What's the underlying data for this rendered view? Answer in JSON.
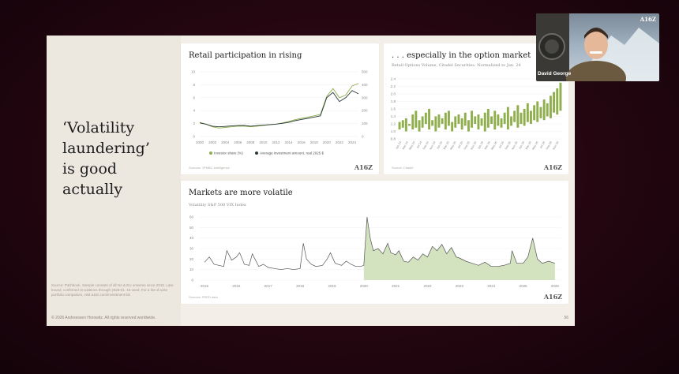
{
  "slide": {
    "headline": "‘Volatility\nlaundering’\nis good\nactually",
    "source_note": "Source: Pitchbook. Sample consists of all NA & EU universe since 2015. Late-bound, confirmed circulations through 2026-01. 15 used. For a list of a16z portfolio companies, visit a16z.com/investment-list",
    "footer_left": "© 2026 Andreessen Horowitz. All rights reserved worldwide.",
    "page_number": "56"
  },
  "chart_retail": {
    "title": "Retail participation in rising",
    "source": "Sources: JPMBC Intelligence",
    "logo": "A16Z",
    "legend": [
      "Investor share (%)",
      "Average investment amount, real 2025 $"
    ],
    "chart_data": {
      "type": "line",
      "x": [
        2000,
        2001,
        2002,
        2003,
        2004,
        2005,
        2006,
        2007,
        2008,
        2009,
        2010,
        2011,
        2012,
        2013,
        2014,
        2015,
        2016,
        2017,
        2018,
        2019,
        2020,
        2021,
        2022,
        2023,
        2024,
        2025
      ],
      "yticks_left": [
        "0",
        "2",
        "4",
        "6",
        "8",
        "10"
      ],
      "yticks_right": [
        "0",
        "100",
        "200",
        "300",
        "400",
        "500"
      ],
      "xticks": [
        "2000",
        "2002",
        "2004",
        "2006",
        "2008",
        "2010",
        "2012",
        "2014",
        "2016",
        "2018",
        "2020",
        "2022",
        "2024"
      ],
      "ylim": [
        0,
        10
      ],
      "y2lim": [
        0,
        500
      ],
      "series": [
        {
          "name": "Investor share (%)",
          "axis": "left",
          "color": "#8fae4c",
          "values": [
            2.2,
            1.9,
            1.5,
            1.3,
            1.4,
            1.5,
            1.6,
            1.6,
            1.5,
            1.6,
            1.7,
            1.8,
            1.9,
            2.1,
            2.3,
            2.6,
            2.8,
            3.0,
            3.2,
            3.4,
            6.2,
            7.4,
            6.0,
            6.4,
            7.8,
            8.2
          ]
        },
        {
          "name": "Average investment amount, real 2025 $",
          "axis": "right",
          "color": "#2b3a3a",
          "values": [
            105,
            95,
            80,
            75,
            78,
            82,
            85,
            86,
            80,
            84,
            88,
            92,
            96,
            102,
            110,
            122,
            132,
            140,
            150,
            160,
            300,
            340,
            270,
            300,
            355,
            330
          ]
        }
      ]
    }
  },
  "chart_options": {
    "title": ". . . especially in the option market",
    "subtitle": "Retail Options Volume, Citadel Securities. Normalized to Jan. 24",
    "source": "Source: Citadel",
    "logo": "A16Z",
    "chart_data": {
      "type": "bar",
      "yticks": [
        "0.8",
        "1.0",
        "1.2",
        "1.4",
        "1.6",
        "1.8",
        "2.0",
        "2.2",
        "2.4"
      ],
      "ylim": [
        0.8,
        2.4
      ],
      "xticks": [
        "Jan 24",
        "Mar 24",
        "May 24",
        "Jul 24",
        "Sep 24",
        "Nov 24",
        "Jan 25",
        "Mar 25",
        "May 25",
        "Jul 25",
        "Sep 25",
        "Nov 25",
        "Jan 26",
        "Mar 26",
        "May 26",
        "Jul 26",
        "Sep 26",
        "Nov 26",
        "Jan 26",
        "Mar 26",
        "May 26",
        "Jul 26",
        "Sep 26",
        "Nov 26"
      ],
      "color": "#8fae4c",
      "values": [
        [
          1.05,
          1.25
        ],
        [
          1.1,
          1.3
        ],
        [
          1.0,
          1.35
        ],
        [
          1.15,
          1.2
        ],
        [
          1.05,
          1.45
        ],
        [
          1.1,
          1.55
        ],
        [
          1.0,
          1.3
        ],
        [
          1.1,
          1.4
        ],
        [
          1.2,
          1.5
        ],
        [
          1.05,
          1.6
        ],
        [
          1.15,
          1.3
        ],
        [
          1.0,
          1.4
        ],
        [
          1.1,
          1.45
        ],
        [
          1.2,
          1.35
        ],
        [
          1.05,
          1.5
        ],
        [
          1.15,
          1.55
        ],
        [
          1.0,
          1.25
        ],
        [
          1.1,
          1.4
        ],
        [
          1.2,
          1.45
        ],
        [
          1.05,
          1.35
        ],
        [
          1.15,
          1.5
        ],
        [
          1.0,
          1.3
        ],
        [
          1.1,
          1.55
        ],
        [
          1.2,
          1.4
        ],
        [
          1.05,
          1.45
        ],
        [
          1.15,
          1.35
        ],
        [
          1.0,
          1.5
        ],
        [
          1.1,
          1.6
        ],
        [
          1.2,
          1.4
        ],
        [
          1.05,
          1.55
        ],
        [
          1.15,
          1.45
        ],
        [
          1.1,
          1.35
        ],
        [
          1.2,
          1.5
        ],
        [
          1.05,
          1.65
        ],
        [
          1.15,
          1.4
        ],
        [
          1.25,
          1.55
        ],
        [
          1.1,
          1.7
        ],
        [
          1.2,
          1.5
        ],
        [
          1.15,
          1.6
        ],
        [
          1.25,
          1.75
        ],
        [
          1.2,
          1.55
        ],
        [
          1.3,
          1.7
        ],
        [
          1.25,
          1.8
        ],
        [
          1.35,
          1.65
        ],
        [
          1.3,
          1.85
        ],
        [
          1.4,
          1.75
        ],
        [
          1.35,
          1.95
        ],
        [
          1.5,
          2.05
        ],
        [
          1.45,
          2.15
        ],
        [
          1.55,
          2.3
        ]
      ]
    }
  },
  "chart_vix": {
    "title": "Markets are more volatile",
    "subtitle": "Volatility S&P 500 VIX Index",
    "source": "Sources: FRED data",
    "logo": "A16Z",
    "chart_data": {
      "type": "area",
      "yticks": [
        "0",
        "10",
        "20",
        "30",
        "40",
        "50",
        "60"
      ],
      "ylim": [
        0,
        60
      ],
      "xticks": [
        "2015",
        "2016",
        "2017",
        "2018",
        "2019",
        "2020",
        "2021",
        "2022",
        "2023",
        "2024",
        "2025",
        "2026"
      ],
      "xlim": [
        2014.8,
        2026.2
      ],
      "highlight_from": 2020.0,
      "line_color": "#555555",
      "fill_color": "#cfe0b8",
      "x": [
        2015.0,
        2015.15,
        2015.3,
        2015.45,
        2015.6,
        2015.7,
        2015.85,
        2016.0,
        2016.1,
        2016.25,
        2016.4,
        2016.5,
        2016.7,
        2016.85,
        2017.0,
        2017.2,
        2017.4,
        2017.6,
        2017.8,
        2018.0,
        2018.1,
        2018.2,
        2018.35,
        2018.5,
        2018.7,
        2018.85,
        2018.95,
        2019.1,
        2019.3,
        2019.45,
        2019.6,
        2019.75,
        2019.9,
        2020.0,
        2020.1,
        2020.2,
        2020.3,
        2020.45,
        2020.6,
        2020.75,
        2020.85,
        2021.0,
        2021.1,
        2021.25,
        2021.4,
        2021.55,
        2021.7,
        2021.85,
        2022.0,
        2022.15,
        2022.3,
        2022.45,
        2022.6,
        2022.75,
        2022.9,
        2023.0,
        2023.2,
        2023.4,
        2023.6,
        2023.8,
        2024.0,
        2024.2,
        2024.4,
        2024.6,
        2024.65,
        2024.8,
        2025.0,
        2025.15,
        2025.3,
        2025.45,
        2025.6,
        2025.8,
        2026.0
      ],
      "values": [
        17,
        22,
        15,
        14,
        13,
        28,
        19,
        22,
        26,
        15,
        14,
        25,
        13,
        15,
        12,
        11,
        10,
        11,
        10,
        11,
        35,
        20,
        15,
        13,
        14,
        20,
        26,
        16,
        14,
        18,
        15,
        13,
        13,
        14,
        60,
        40,
        28,
        30,
        25,
        35,
        26,
        24,
        28,
        18,
        17,
        22,
        19,
        25,
        22,
        32,
        28,
        34,
        25,
        31,
        22,
        21,
        18,
        16,
        14,
        17,
        13,
        13,
        14,
        16,
        28,
        16,
        16,
        22,
        40,
        20,
        16,
        18,
        16
      ]
    }
  },
  "webcam": {
    "logo": "A16Z",
    "name": "David George"
  }
}
